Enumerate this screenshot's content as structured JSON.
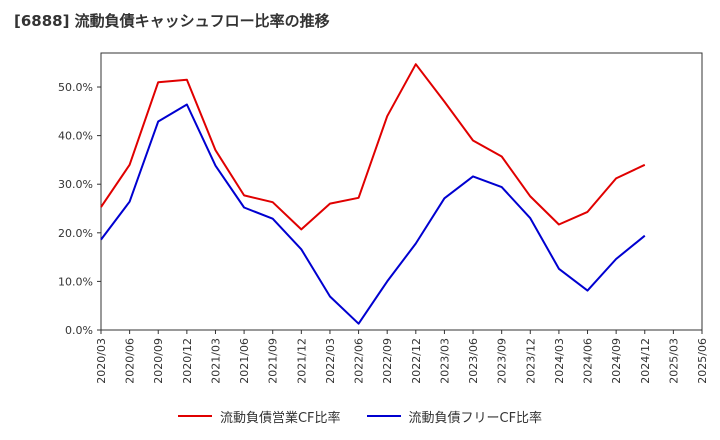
{
  "chart_data": {
    "type": "line",
    "title": "[6888]  流動負債キャッシュフロー比率の推移",
    "x": [
      "2020/03",
      "2020/06",
      "2020/09",
      "2020/12",
      "2021/03",
      "2021/06",
      "2021/09",
      "2021/12",
      "2022/03",
      "2022/06",
      "2022/09",
      "2022/12",
      "2023/03",
      "2023/06",
      "2023/09",
      "2023/12",
      "2024/03",
      "2024/06",
      "2024/09",
      "2024/12",
      "2025/03",
      "2025/06"
    ],
    "series": [
      {
        "name": "流動負債営業CF比率",
        "color": "#e00000",
        "values": [
          25.3,
          34.0,
          51.0,
          51.5,
          37.0,
          27.7,
          26.3,
          20.7,
          26.0,
          27.2,
          44.0,
          54.7,
          47.0,
          39.0,
          35.7,
          27.5,
          21.7,
          24.3,
          31.2,
          34.0,
          null,
          null
        ]
      },
      {
        "name": "流動負債フリーCF比率",
        "color": "#0000d0",
        "values": [
          18.6,
          26.4,
          42.9,
          46.4,
          33.8,
          25.2,
          22.9,
          16.6,
          6.9,
          1.3,
          10.0,
          17.8,
          27.1,
          31.6,
          29.4,
          23.0,
          12.6,
          8.1,
          14.6,
          19.4,
          null,
          null
        ]
      }
    ],
    "y_ticks": [
      "0.0%",
      "10.0%",
      "20.0%",
      "30.0%",
      "40.0%",
      "50.0%"
    ],
    "ylim": [
      0,
      57
    ],
    "grid": true,
    "legend_position": "bottom"
  }
}
